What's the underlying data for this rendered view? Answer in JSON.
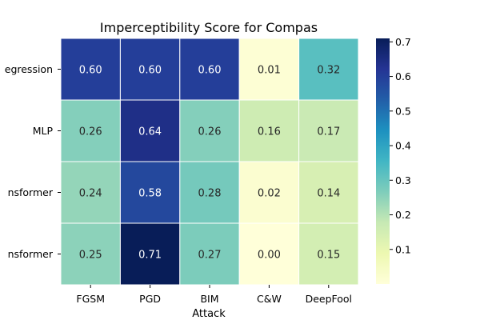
{
  "chart_data": {
    "type": "heatmap",
    "title": "Imperceptibility Score for Compas",
    "xlabel": "Attack",
    "ylabel": "",
    "x_categories": [
      "FGSM",
      "PGD",
      "BIM",
      "C&W",
      "DeepFool"
    ],
    "y_categories": [
      "Logistic Regression",
      "MLP",
      "TabTransformer",
      "FT-Transformer"
    ],
    "y_tick_labels_visible": [
      "egression",
      "MLP",
      "nsformer",
      "nsformer"
    ],
    "values": [
      [
        0.6,
        0.6,
        0.6,
        0.01,
        0.32
      ],
      [
        0.26,
        0.64,
        0.26,
        0.16,
        0.17
      ],
      [
        0.24,
        0.58,
        0.28,
        0.02,
        0.14
      ],
      [
        0.25,
        0.71,
        0.27,
        0.0,
        0.15
      ]
    ],
    "value_format": "0.00",
    "colormap": "YlGnBu",
    "colorbar": {
      "min": 0.0,
      "max": 0.71,
      "ticks": [
        0.1,
        0.2,
        0.3,
        0.4,
        0.5,
        0.6,
        0.7
      ],
      "tick_labels": [
        "0.1",
        "0.2",
        "0.3",
        "0.4",
        "0.5",
        "0.6",
        "0.7"
      ]
    },
    "grid": false,
    "annotated": true
  }
}
